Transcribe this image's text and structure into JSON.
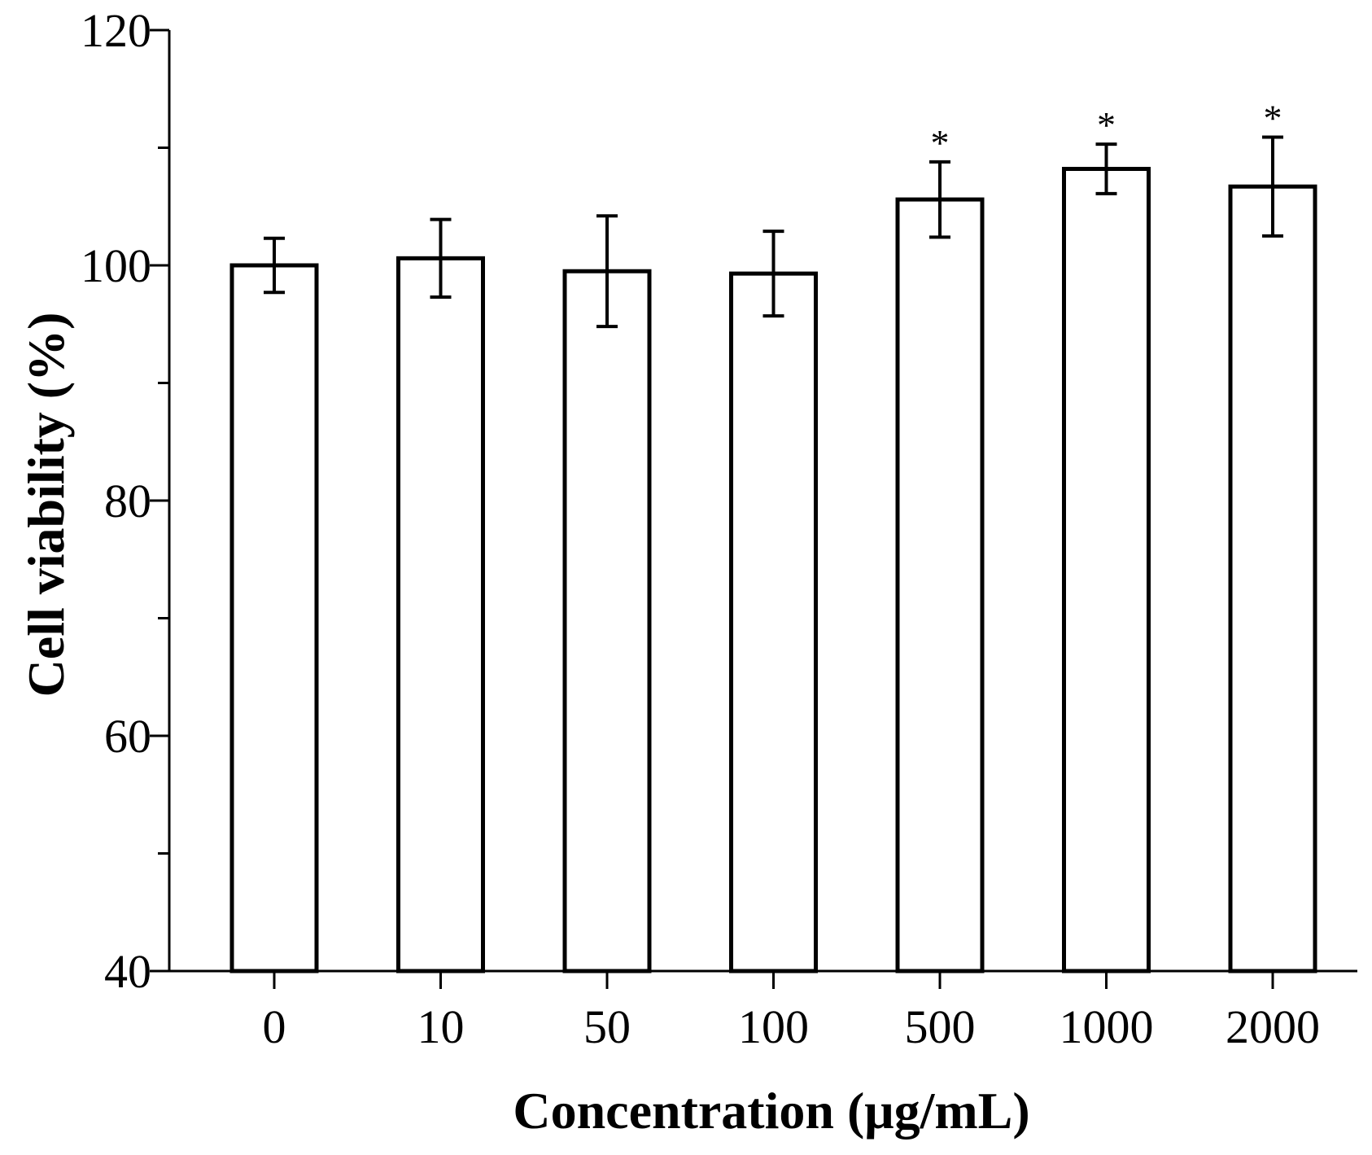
{
  "chart_data": {
    "type": "bar",
    "categories": [
      "0",
      "10",
      "50",
      "100",
      "500",
      "1000",
      "2000"
    ],
    "values": [
      100.0,
      100.6,
      99.5,
      99.3,
      105.6,
      108.2,
      106.7
    ],
    "errors": [
      2.3,
      3.3,
      4.7,
      3.6,
      3.2,
      2.1,
      4.2
    ],
    "significance": [
      "",
      "",
      "",
      "",
      "*",
      "*",
      "*"
    ],
    "xlabel": "Concentration (μg/mL)",
    "ylabel": "Cell viability (%)",
    "ylim": [
      40,
      120
    ],
    "yticks": [
      40,
      60,
      80,
      100,
      120
    ],
    "yticks_labeled": [
      40,
      60,
      80,
      100,
      120
    ],
    "grid": false,
    "bar_fill": "#ffffff",
    "bar_edge": "#000000"
  }
}
